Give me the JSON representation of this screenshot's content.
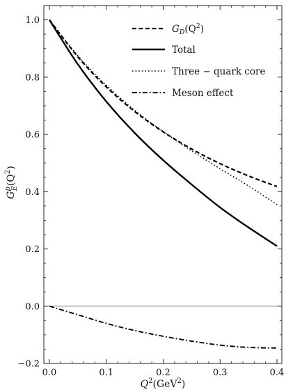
{
  "chart_data": {
    "type": "line",
    "xlabel": {
      "base": "Q",
      "sup": "2",
      "unit_pre": "(GeV",
      "unit_sup": "2",
      "unit_post": ")"
    },
    "ylabel": {
      "base": "G",
      "sub": "E",
      "sup": "p",
      "arg_pre": "(Q",
      "arg_sup": "2",
      "arg_post": ")"
    },
    "xlim": [
      0,
      0.4
    ],
    "ylim": [
      -0.2,
      1.05
    ],
    "xticks": [
      0.0,
      0.1,
      0.2,
      0.3,
      0.4
    ],
    "xtick_labels": [
      "0.0",
      "0.1",
      "0.2",
      "0.3",
      "0.4"
    ],
    "yticks": [
      -0.2,
      0.0,
      0.2,
      0.4,
      0.6,
      0.8,
      1.0
    ],
    "ytick_labels": [
      "−0.2",
      "0.0",
      "0.2",
      "0.4",
      "0.6",
      "0.8",
      "1.0"
    ],
    "zero_line": true,
    "grid": false,
    "legend_position": "top-right",
    "series": [
      {
        "name": "G_D(Q^2)",
        "label": {
          "base": "G",
          "sub": "D",
          "pre": "(Q",
          "sup": "2",
          "post": ")"
        },
        "style": "dashed",
        "x": [
          0.0,
          0.05,
          0.1,
          0.15,
          0.2,
          0.25,
          0.3,
          0.35,
          0.4
        ],
        "y": [
          1.0,
          0.871,
          0.766,
          0.68,
          0.609,
          0.549,
          0.498,
          0.455,
          0.418
        ]
      },
      {
        "name": "Total",
        "label": {
          "text": "Total"
        },
        "style": "solid",
        "x": [
          0.0,
          0.05,
          0.1,
          0.15,
          0.2,
          0.25,
          0.3,
          0.35,
          0.4
        ],
        "y": [
          1.0,
          0.845,
          0.715,
          0.605,
          0.51,
          0.425,
          0.345,
          0.275,
          0.21
        ]
      },
      {
        "name": "Three − quark core",
        "label": {
          "text": "Three − quark core"
        },
        "style": "dotted",
        "x": [
          0.0,
          0.05,
          0.1,
          0.15,
          0.2,
          0.25,
          0.3,
          0.35,
          0.4
        ],
        "y": [
          1.0,
          0.875,
          0.772,
          0.684,
          0.61,
          0.543,
          0.48,
          0.42,
          0.355
        ]
      },
      {
        "name": "Meson effect",
        "label": {
          "text": "Meson effect"
        },
        "style": "dashdot",
        "x": [
          0.0,
          0.05,
          0.1,
          0.15,
          0.2,
          0.25,
          0.3,
          0.35,
          0.4
        ],
        "y": [
          0.0,
          -0.03,
          -0.06,
          -0.085,
          -0.105,
          -0.122,
          -0.136,
          -0.144,
          -0.146
        ]
      }
    ]
  }
}
